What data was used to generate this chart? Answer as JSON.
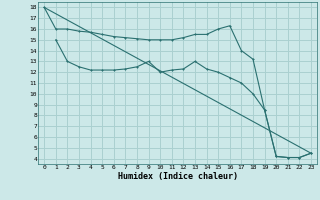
{
  "xlabel": "Humidex (Indice chaleur)",
  "bg_color": "#cce8e8",
  "grid_color": "#aad0d0",
  "line_color": "#2a7070",
  "xlim": [
    -0.5,
    23.5
  ],
  "ylim": [
    3.5,
    18.5
  ],
  "xticks": [
    0,
    1,
    2,
    3,
    4,
    5,
    6,
    7,
    8,
    9,
    10,
    11,
    12,
    13,
    14,
    15,
    16,
    17,
    18,
    19,
    20,
    21,
    22,
    23
  ],
  "yticks": [
    4,
    5,
    6,
    7,
    8,
    9,
    10,
    11,
    12,
    13,
    14,
    15,
    16,
    17,
    18
  ],
  "line1_x": [
    0,
    1,
    2,
    3,
    4,
    5,
    6,
    7,
    8,
    9,
    10,
    11,
    12,
    13,
    14,
    15,
    16,
    17,
    18,
    19,
    20,
    21,
    22,
    23
  ],
  "line1_y": [
    18,
    16,
    16,
    15.8,
    15.7,
    15.5,
    15.3,
    15.2,
    15.1,
    15.0,
    15.0,
    15.0,
    15.2,
    15.5,
    15.5,
    16.0,
    16.3,
    14.0,
    13.2,
    8.5,
    4.2,
    4.1,
    4.1,
    4.5
  ],
  "line2_x": [
    1,
    2,
    3,
    4,
    5,
    6,
    7,
    8,
    9,
    10,
    11,
    12,
    13,
    14,
    15,
    16,
    17,
    18,
    19,
    20,
    21,
    22,
    23
  ],
  "line2_y": [
    15,
    13,
    12.5,
    12.2,
    12.2,
    12.2,
    12.3,
    12.5,
    13.0,
    12.0,
    12.2,
    12.3,
    13.0,
    12.3,
    12.0,
    11.5,
    11.0,
    10.0,
    8.5,
    4.2,
    4.1,
    4.1,
    4.5
  ],
  "line3_x": [
    0,
    23
  ],
  "line3_y": [
    18,
    4.5
  ]
}
